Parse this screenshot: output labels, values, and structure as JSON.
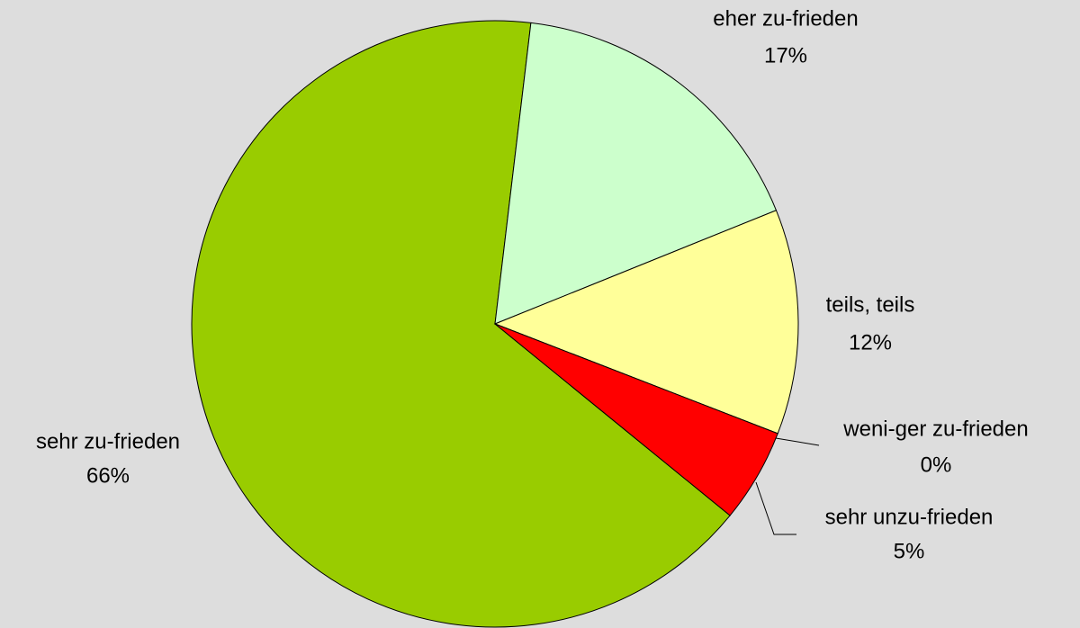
{
  "chart_data": {
    "type": "pie",
    "categories": [
      "sehr zu-frieden",
      "eher zu-frieden",
      "teils, teils",
      "weni-ger zu-frieden",
      "sehr unzu-frieden"
    ],
    "values": [
      66,
      17,
      12,
      0,
      5
    ],
    "value_labels": [
      "66%",
      "17%",
      "12%",
      "0%",
      "5%"
    ],
    "colors": [
      "#99cc00",
      "#ccffcc",
      "#ffff99",
      "#ff9900",
      "#ff0000"
    ]
  }
}
